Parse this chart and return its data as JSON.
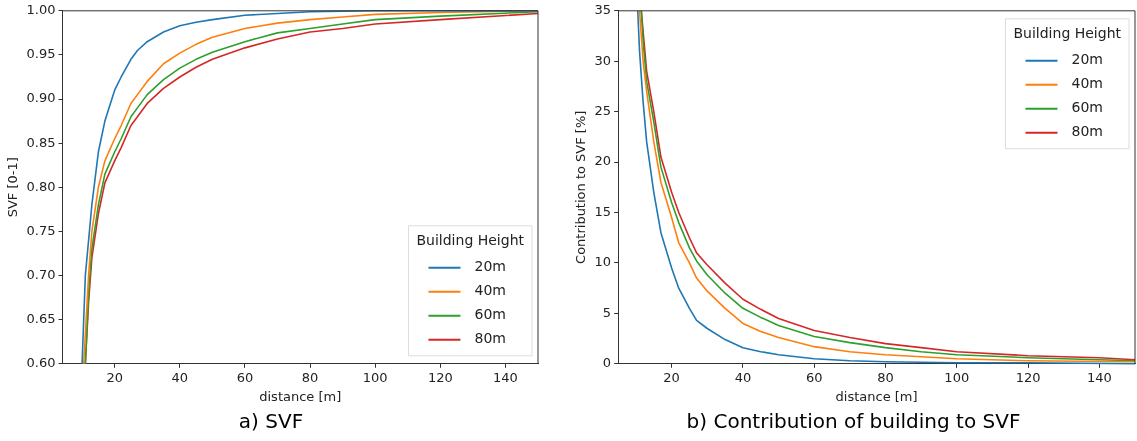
{
  "chart_data": [
    {
      "type": "line",
      "title": "a) SVF",
      "xlabel": "distance [m]",
      "ylabel": "SVF [0-1]",
      "legend_title": "Building Height",
      "legend": "bottom right",
      "grid": false,
      "marker": "none",
      "line_style": "solid",
      "xlim": [
        4,
        150
      ],
      "xticks": [
        20,
        40,
        60,
        80,
        100,
        120,
        140
      ],
      "ylim": [
        0.6,
        1.0
      ],
      "yticks": [
        {
          "value": 0.6,
          "label": "0.60"
        },
        {
          "value": 0.65,
          "label": "0.65"
        },
        {
          "value": 0.7,
          "label": "0.70"
        },
        {
          "value": 0.75,
          "label": "0.75"
        },
        {
          "value": 0.8,
          "label": "0.80"
        },
        {
          "value": 0.85,
          "label": "0.85"
        },
        {
          "value": 0.9,
          "label": "0.90"
        },
        {
          "value": 0.95,
          "label": "0.95"
        },
        {
          "value": 1.0,
          "label": "1.00"
        }
      ],
      "series": [
        {
          "name": "20m",
          "color": "#1f77b4",
          "x": [
            10,
            11,
            12,
            13,
            15,
            17,
            20,
            22,
            25,
            27,
            30,
            35,
            40,
            45,
            50,
            60,
            70,
            80,
            100,
            120,
            150
          ],
          "values": [
            0.6,
            0.7,
            0.74,
            0.78,
            0.84,
            0.875,
            0.91,
            0.925,
            0.945,
            0.955,
            0.965,
            0.976,
            0.983,
            0.987,
            0.99,
            0.995,
            0.997,
            0.999,
            1.0,
            1.0,
            1.0
          ]
        },
        {
          "name": "40m",
          "color": "#ff7f0e",
          "x": [
            10.5,
            12,
            13,
            15,
            17,
            20,
            22,
            25,
            27,
            30,
            35,
            40,
            45,
            50,
            60,
            70,
            80,
            90,
            100,
            120,
            150
          ],
          "values": [
            0.6,
            0.7,
            0.75,
            0.8,
            0.83,
            0.855,
            0.87,
            0.895,
            0.905,
            0.92,
            0.94,
            0.952,
            0.962,
            0.97,
            0.98,
            0.986,
            0.99,
            0.993,
            0.996,
            0.998,
            1.0
          ]
        },
        {
          "name": "60m",
          "color": "#2ca02c",
          "x": [
            11,
            12,
            13,
            15,
            17,
            20,
            22,
            25,
            27,
            30,
            35,
            40,
            45,
            50,
            60,
            70,
            80,
            90,
            100,
            120,
            150
          ],
          "values": [
            0.6,
            0.68,
            0.73,
            0.78,
            0.815,
            0.84,
            0.855,
            0.88,
            0.89,
            0.905,
            0.922,
            0.935,
            0.945,
            0.953,
            0.965,
            0.975,
            0.98,
            0.985,
            0.99,
            0.994,
            0.999
          ]
        },
        {
          "name": "80m",
          "color": "#d62728",
          "x": [
            11,
            12,
            13,
            15,
            17,
            20,
            22,
            25,
            27,
            30,
            35,
            40,
            45,
            50,
            60,
            70,
            80,
            90,
            100,
            120,
            150
          ],
          "values": [
            0.6,
            0.67,
            0.72,
            0.77,
            0.805,
            0.83,
            0.845,
            0.87,
            0.88,
            0.895,
            0.912,
            0.925,
            0.936,
            0.945,
            0.958,
            0.968,
            0.976,
            0.98,
            0.985,
            0.99,
            0.997
          ]
        }
      ]
    },
    {
      "type": "line",
      "title": "b) Contribution of building to SVF",
      "xlabel": "distance [m]",
      "ylabel": "Contribution to SVF [%]",
      "legend_title": "Building Height",
      "legend": "top right",
      "grid": false,
      "marker": "none",
      "line_style": "solid",
      "xlim": [
        5,
        150
      ],
      "xticks": [
        20,
        40,
        60,
        80,
        100,
        120,
        140
      ],
      "ylim": [
        0,
        35
      ],
      "yticks": [
        0,
        5,
        10,
        15,
        20,
        25,
        30,
        35
      ],
      "series": [
        {
          "name": "20m",
          "color": "#1f77b4",
          "x": [
            10.5,
            11,
            12,
            13,
            15,
            17,
            20,
            22,
            25,
            27,
            30,
            35,
            40,
            45,
            50,
            60,
            70,
            80,
            100,
            120,
            150
          ],
          "values": [
            35,
            31,
            26,
            22,
            17,
            13,
            9.5,
            7.5,
            5.5,
            4.3,
            3.5,
            2.4,
            1.6,
            1.2,
            0.9,
            0.5,
            0.3,
            0.2,
            0.1,
            0.1,
            0.0
          ]
        },
        {
          "name": "40m",
          "color": "#ff7f0e",
          "x": [
            11,
            12,
            13,
            15,
            17,
            20,
            22,
            25,
            27,
            30,
            35,
            40,
            45,
            50,
            60,
            70,
            80,
            90,
            100,
            120,
            150
          ],
          "values": [
            35,
            30,
            27,
            22,
            18,
            14.5,
            12,
            10,
            8.5,
            7.2,
            5.5,
            4,
            3.2,
            2.6,
            1.7,
            1.2,
            0.9,
            0.7,
            0.5,
            0.3,
            0.2
          ]
        },
        {
          "name": "60m",
          "color": "#2ca02c",
          "x": [
            11.5,
            12,
            13,
            15,
            17,
            20,
            22,
            25,
            27,
            30,
            35,
            40,
            45,
            50,
            60,
            70,
            80,
            90,
            100,
            120,
            150
          ],
          "values": [
            35,
            32,
            28,
            24,
            19.5,
            16,
            14,
            11.5,
            10.2,
            8.8,
            7,
            5.5,
            4.6,
            3.8,
            2.7,
            2.1,
            1.6,
            1.2,
            0.9,
            0.6,
            0.3
          ]
        },
        {
          "name": "80m",
          "color": "#d62728",
          "x": [
            11.5,
            12,
            13,
            15,
            17,
            20,
            22,
            25,
            27,
            30,
            35,
            40,
            45,
            50,
            60,
            70,
            80,
            90,
            100,
            120,
            140,
            150
          ],
          "values": [
            35,
            33,
            29,
            25,
            20.5,
            17,
            15,
            12.5,
            11,
            9.8,
            8,
            6.4,
            5.4,
            4.5,
            3.3,
            2.6,
            2,
            1.6,
            1.2,
            0.8,
            0.6,
            0.4
          ]
        }
      ]
    }
  ]
}
